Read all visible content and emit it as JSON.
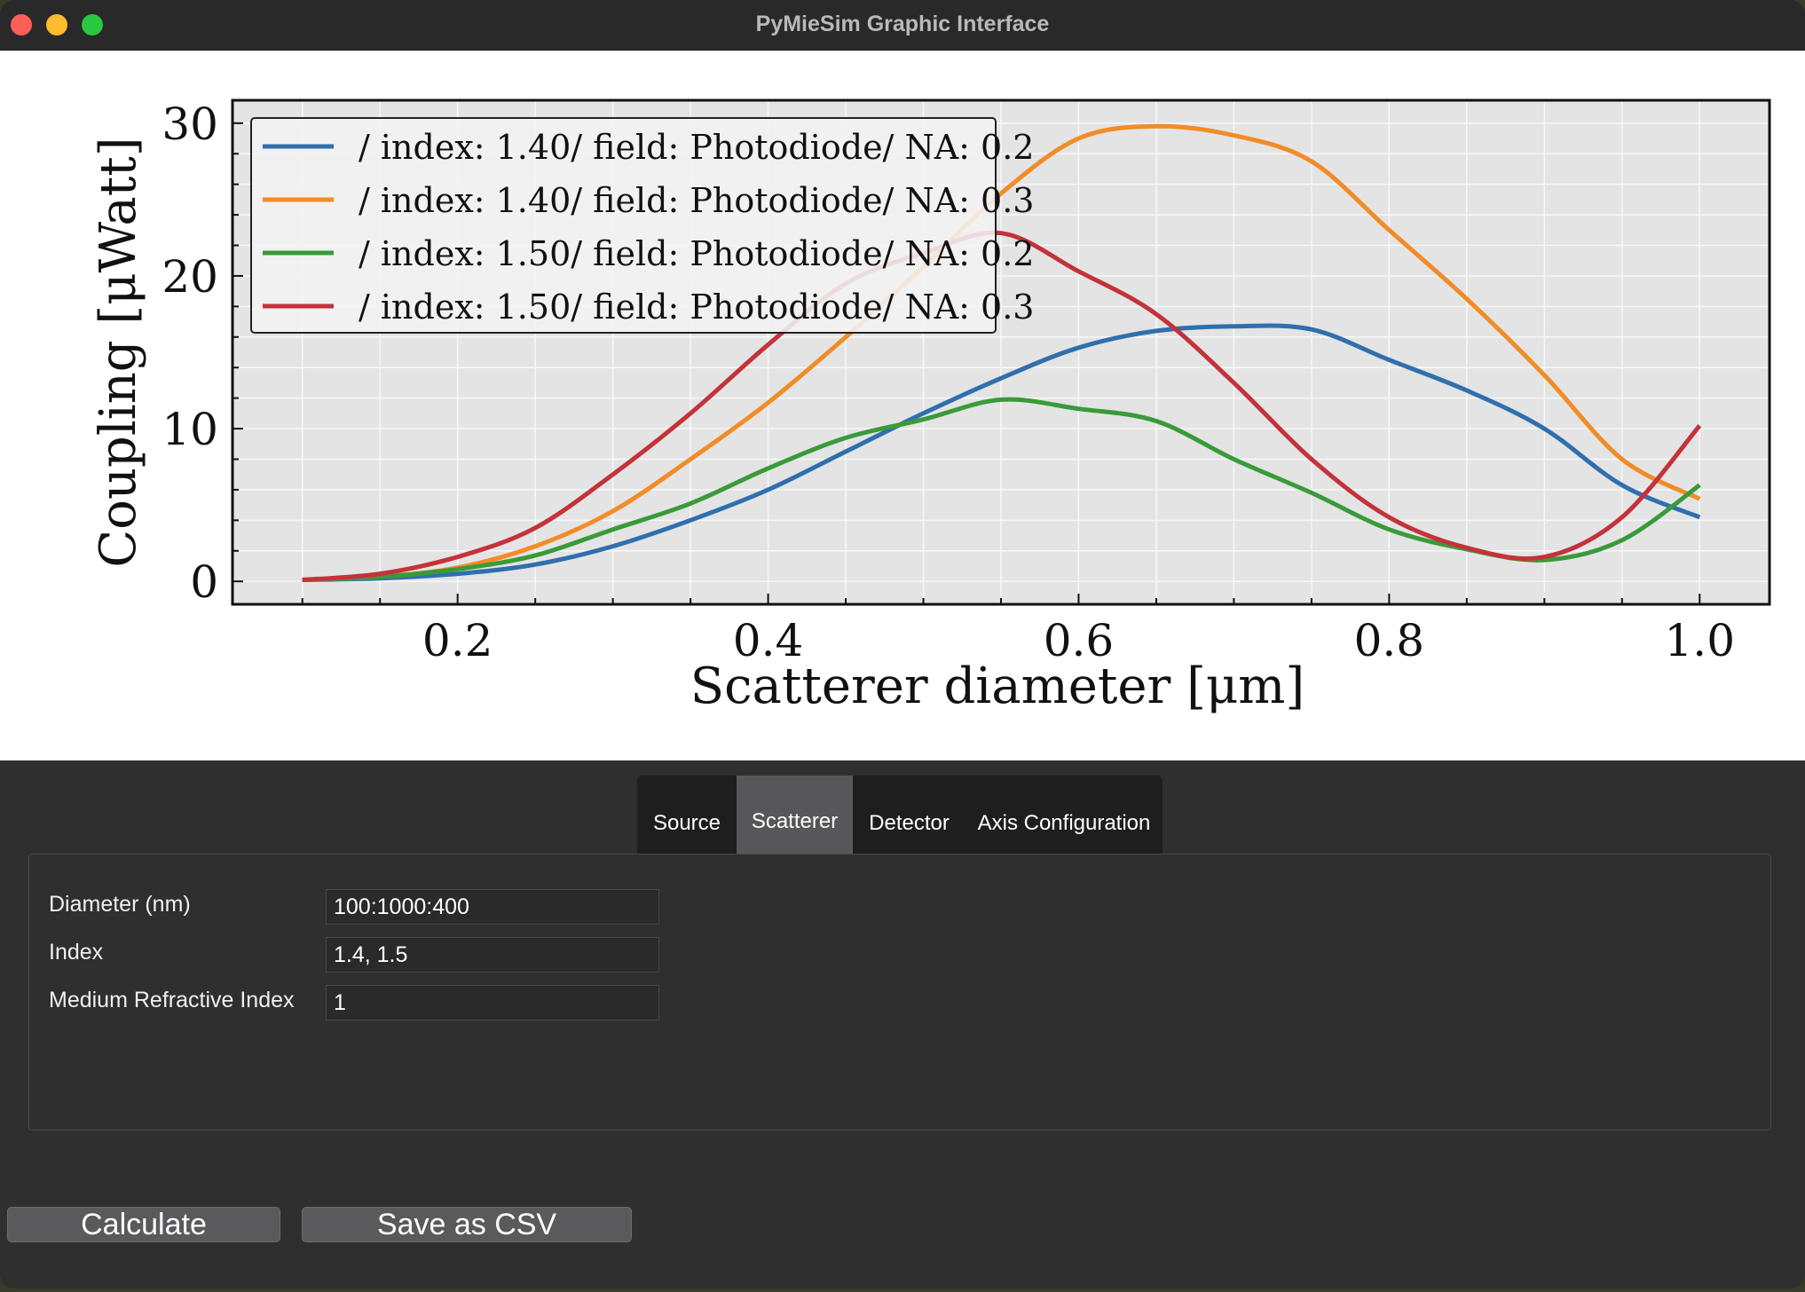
{
  "window": {
    "title": "PyMieSim Graphic Interface"
  },
  "chart_data": {
    "type": "line",
    "xlabel": "Scatterer diameter [μm]",
    "ylabel": "Coupling [μWatt]",
    "xlim": [
      0.055,
      1.045
    ],
    "ylim": [
      -1.5,
      31.5
    ],
    "xticks": [
      "0.2",
      "0.4",
      "0.6",
      "0.8",
      "1.0"
    ],
    "yticks": [
      "0",
      "10",
      "20",
      "30"
    ],
    "grid": true,
    "legend_position": "upper-left",
    "x": [
      0.1,
      0.15,
      0.2,
      0.25,
      0.3,
      0.35,
      0.4,
      0.45,
      0.5,
      0.55,
      0.6,
      0.65,
      0.7,
      0.75,
      0.8,
      0.85,
      0.9,
      0.95,
      1.0
    ],
    "series": [
      {
        "name": "/ index: 1.40/ field: Photodiode/ NA: 0.2",
        "color": "#2f6fad",
        "values": [
          0.1,
          0.2,
          0.5,
          1.1,
          2.3,
          4.0,
          6.0,
          8.5,
          11.0,
          13.3,
          15.3,
          16.4,
          16.7,
          16.5,
          14.5,
          12.5,
          10.0,
          6.3,
          4.2
        ]
      },
      {
        "name": "/ index: 1.40/ field: Photodiode/ NA: 0.3",
        "color": "#f28c28",
        "values": [
          0.1,
          0.3,
          0.9,
          2.3,
          4.6,
          8.0,
          11.7,
          16.0,
          20.6,
          25.4,
          29.0,
          29.8,
          29.2,
          27.5,
          23.0,
          18.5,
          13.5,
          8.0,
          5.4
        ]
      },
      {
        "name": "/ index: 1.50/ field: Photodiode/ NA: 0.2",
        "color": "#3a9a3a",
        "values": [
          0.1,
          0.3,
          0.8,
          1.7,
          3.4,
          5.1,
          7.4,
          9.4,
          10.6,
          11.9,
          11.3,
          10.5,
          8.0,
          5.8,
          3.4,
          2.1,
          1.4,
          2.7,
          6.3
        ]
      },
      {
        "name": "/ index: 1.50/ field: Photodiode/ NA: 0.3",
        "color": "#c4323a",
        "values": [
          0.1,
          0.5,
          1.6,
          3.5,
          7.0,
          11.0,
          15.5,
          19.5,
          21.5,
          22.8,
          20.3,
          17.5,
          13.0,
          8.0,
          4.2,
          2.2,
          1.6,
          4.2,
          10.2
        ]
      }
    ]
  },
  "tabs": [
    {
      "label": "Source"
    },
    {
      "label": "Scatterer"
    },
    {
      "label": "Detector"
    },
    {
      "label": "Axis Configuration"
    }
  ],
  "form": {
    "diameter": {
      "label": "Diameter (nm)",
      "value": "100:1000:400"
    },
    "index": {
      "label": "Index",
      "value": "1.4, 1.5"
    },
    "medium": {
      "label": "Medium Refractive Index",
      "value": "1"
    }
  },
  "buttons": {
    "calculate": "Calculate",
    "save_csv": "Save as CSV"
  }
}
